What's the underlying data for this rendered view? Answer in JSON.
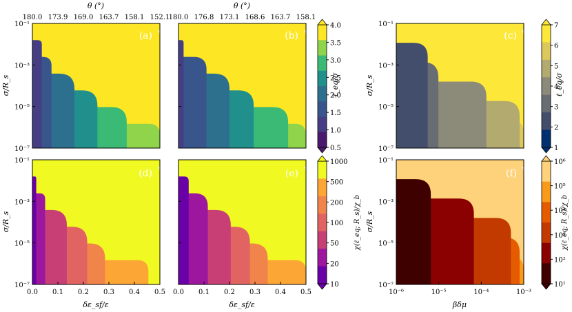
{
  "chart_data": {
    "type": "heatmap",
    "axes_labels": {
      "y_left": "σ/R_s",
      "x_bottom_left": "δε_sf/ε",
      "x_bottom_right": "βδμ",
      "x_top": "θ (°)"
    },
    "y_axis": {
      "scale": "log",
      "range": [
        1e-07,
        0.1
      ],
      "ticks": [
        "10⁻¹",
        "10⁻³",
        "10⁻⁵",
        "10⁻⁷"
      ]
    },
    "x_eps": {
      "range": [
        0,
        0.5
      ],
      "ticks": [
        "0.0",
        "0.1",
        "0.2",
        "0.3",
        "0.4",
        "0.5"
      ]
    },
    "x_mu": {
      "scale": "log",
      "range": [
        1e-06,
        0.001
      ],
      "ticks": [
        "10⁻⁶",
        "10⁻⁵",
        "10⁻⁴",
        "10⁻³"
      ]
    },
    "top_ticks_a": [
      "180.0",
      "173.9",
      "169.0",
      "163.7",
      "158.1",
      "152.1"
    ],
    "top_ticks_b": [
      "180.0",
      "176.8",
      "173.1",
      "168.6",
      "163.7",
      "158.1"
    ],
    "panels": [
      {
        "label": "(a)",
        "colormap": "viridis",
        "x": "x_eps",
        "bounds": [
          [
            0.037,
            4.0
          ],
          [
            0.075,
            3.5
          ],
          [
            0.165,
            3.0
          ],
          [
            0.255,
            2.5
          ],
          [
            0.37,
            2.0
          ],
          [
            0.5,
            1.5
          ]
        ],
        "top_band": 1.0
      },
      {
        "label": "(b)",
        "colormap": "viridis",
        "x": "x_eps",
        "bounds": [
          [
            0.02,
            4.0
          ],
          [
            0.11,
            3.5
          ],
          [
            0.2,
            3.0
          ],
          [
            0.295,
            2.5
          ],
          [
            0.43,
            2.0
          ],
          [
            0.5,
            1.5
          ]
        ],
        "top_band": 1.0
      },
      {
        "label": "(c)",
        "colormap": "cividis",
        "x": "x_mu",
        "bounds": [
          [
            5.5e-06,
            7
          ],
          [
            9.8e-06,
            6
          ],
          [
            0.000132,
            5
          ],
          [
            0.0008,
            4
          ],
          [
            0.001,
            3
          ]
        ],
        "top_band": 2
      },
      {
        "label": "(d)",
        "colormap": "plasma",
        "x": "x_eps",
        "bounds": [
          [
            0.015,
            1000
          ],
          [
            0.05,
            500
          ],
          [
            0.135,
            200
          ],
          [
            0.215,
            100
          ],
          [
            0.285,
            50
          ],
          [
            0.455,
            20
          ]
        ],
        "top_band": 10
      },
      {
        "label": "(e)",
        "colormap": "plasma",
        "x": "x_eps",
        "bounds": [
          [
            0.04,
            1000
          ],
          [
            0.115,
            500
          ],
          [
            0.205,
            200
          ],
          [
            0.28,
            100
          ],
          [
            0.35,
            50
          ],
          [
            0.5,
            20
          ]
        ],
        "top_band": 10
      },
      {
        "label": "(f)",
        "colormap": "heat",
        "x": "x_mu",
        "bounds": [
          [
            6.5e-06,
            100000
          ],
          [
            6.7e-05,
            10000
          ],
          [
            0.0005,
            1000
          ],
          [
            0.0008,
            100
          ],
          [
            0.001,
            10
          ]
        ],
        "top_band": 1000000
      }
    ],
    "colorbars": [
      {
        "label": "ℓ_eq/σ",
        "ticks": [
          "4.0",
          "3.5",
          "3.0",
          "2.5",
          "2.0",
          "1.5",
          "1.0",
          "0.5"
        ],
        "colors": [
          "#4a1a6c",
          "#453e84",
          "#39568c",
          "#2d708e",
          "#21908d",
          "#3bba75",
          "#8fd44a",
          "#fde725"
        ]
      },
      {
        "label": "ℓ_eq/σ",
        "ticks": [
          "7",
          "6",
          "5",
          "4",
          "3",
          "2",
          "1"
        ],
        "colors": [
          "#00306f",
          "#434e6c",
          "#686d73",
          "#8c8b79",
          "#b3aa70",
          "#dcc85b",
          "#fde839"
        ]
      },
      {
        "label": "χ(ℓ_eq; R_s)/χ_b",
        "ticks": [
          "1000",
          "500",
          "200",
          "100",
          "50",
          "20",
          "10"
        ],
        "colors": [
          "#6a00a8",
          "#9c179e",
          "#c73f75",
          "#e16462",
          "#f1844b",
          "#fca636",
          "#f0f921"
        ]
      },
      {
        "label": "χ(ℓ_eq; R_s)/χ_b",
        "ticks": [
          "10⁶",
          "10⁵",
          "10⁴",
          "10³",
          "10²",
          "10¹"
        ],
        "colors": [
          "#3f0000",
          "#8b0000",
          "#c23a00",
          "#e55c00",
          "#fa9a1a",
          "#fed27a"
        ]
      }
    ]
  }
}
